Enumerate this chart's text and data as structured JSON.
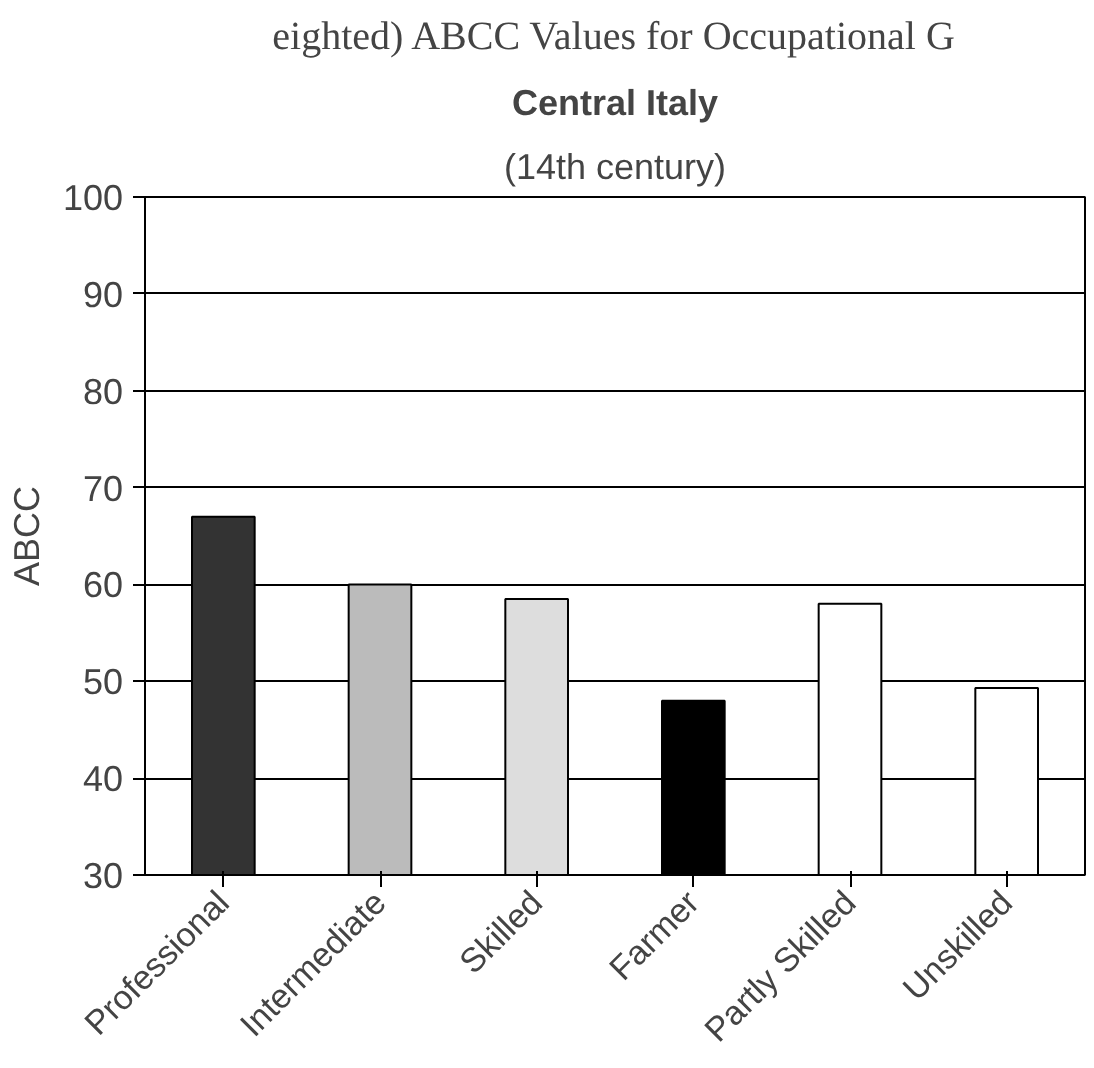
{
  "chart_data": {
    "type": "bar",
    "title": "Central Italy",
    "subtitle": "(14th century)",
    "ylabel": "ABCC",
    "annotations": [
      "eighted) ABCC Values for Occupational G"
    ],
    "categories": [
      "Professional",
      "Intermediate",
      "Skilled",
      "Farmer",
      "Partly Skilled",
      "Unskilled"
    ],
    "values": [
      67,
      60,
      58.5,
      48,
      58,
      49.3
    ],
    "colors": [
      "#333333",
      "#bbbbbb",
      "#dddddd",
      "#000000",
      "#ffffff",
      "#ffffff"
    ],
    "ylim": [
      30,
      100
    ],
    "yticks": [
      30,
      40,
      50,
      60,
      70,
      80,
      90,
      100
    ],
    "grid": "y"
  }
}
